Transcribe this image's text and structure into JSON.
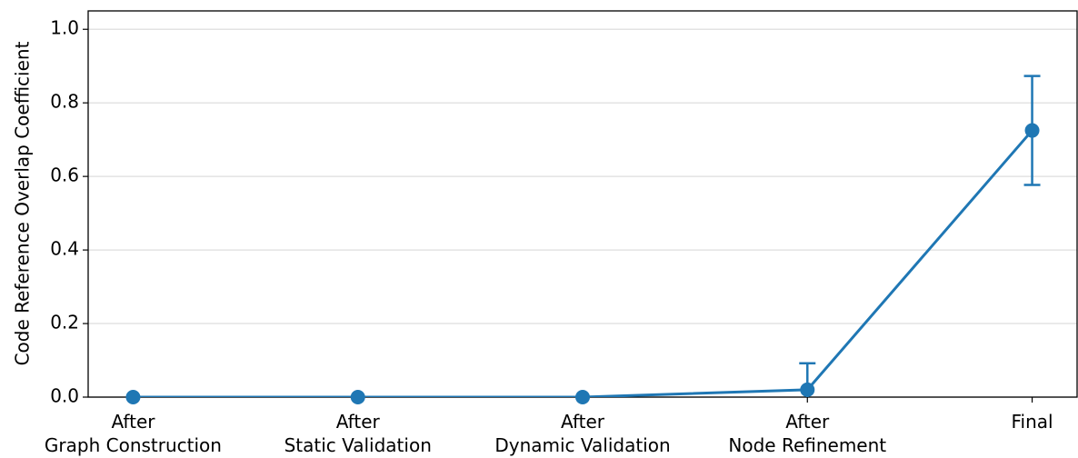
{
  "chart_data": {
    "type": "line",
    "y_label": "Code Reference Overlap Coefficient",
    "categories": [
      "After\nGraph Construction",
      "After\nStatic Validation",
      "After\nDynamic Validation",
      "After\nNode Refinement",
      "Final"
    ],
    "series": [
      {
        "color": "#1f77b4",
        "values": [
          0,
          0,
          0,
          0.02,
          0.725
        ],
        "errors": [
          0,
          0,
          0,
          0.072,
          0.148
        ]
      }
    ],
    "ylim": [
      0,
      1.05
    ],
    "yticks": [
      {
        "value": 0,
        "label": "0.0"
      },
      {
        "value": 0.2,
        "label": "0.2"
      },
      {
        "value": 0.4,
        "label": "0.4"
      },
      {
        "value": 0.6,
        "label": "0.6"
      },
      {
        "value": 0.8,
        "label": "0.8"
      },
      {
        "value": 1,
        "label": "1.0"
      }
    ],
    "grid": true
  }
}
